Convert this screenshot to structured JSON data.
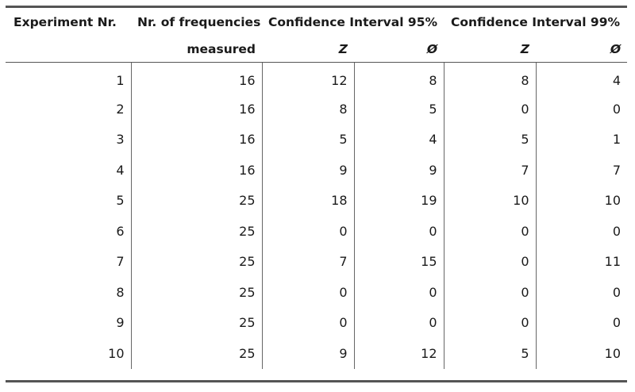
{
  "table": {
    "headers": {
      "experiment": "Experiment Nr.",
      "frequencies_line1": "Nr. of frequencies",
      "frequencies_line2": "measured",
      "ci95": "Confidence Interval 95%",
      "ci99": "Confidence Interval 99%",
      "sub_z": "Z",
      "sub_phi": "Ø"
    },
    "rows": [
      {
        "exp": "1",
        "freq": "16",
        "z95": "12",
        "phi95": "8",
        "z99": "8",
        "phi99": "4"
      },
      {
        "exp": "2",
        "freq": "16",
        "z95": "8",
        "phi95": "5",
        "z99": "0",
        "phi99": "0"
      },
      {
        "exp": "3",
        "freq": "16",
        "z95": "5",
        "phi95": "4",
        "z99": "5",
        "phi99": "1"
      },
      {
        "exp": "4",
        "freq": "16",
        "z95": "9",
        "phi95": "9",
        "z99": "7",
        "phi99": "7"
      },
      {
        "exp": "5",
        "freq": "25",
        "z95": "18",
        "phi95": "19",
        "z99": "10",
        "phi99": "10"
      },
      {
        "exp": "6",
        "freq": "25",
        "z95": "0",
        "phi95": "0",
        "z99": "0",
        "phi99": "0"
      },
      {
        "exp": "7",
        "freq": "25",
        "z95": "7",
        "phi95": "15",
        "z99": "0",
        "phi99": "11"
      },
      {
        "exp": "8",
        "freq": "25",
        "z95": "0",
        "phi95": "0",
        "z99": "0",
        "phi99": "0"
      },
      {
        "exp": "9",
        "freq": "25",
        "z95": "0",
        "phi95": "0",
        "z99": "0",
        "phi99": "0"
      },
      {
        "exp": "10",
        "freq": "25",
        "z95": "9",
        "phi95": "12",
        "z99": "5",
        "phi99": "10"
      }
    ]
  }
}
